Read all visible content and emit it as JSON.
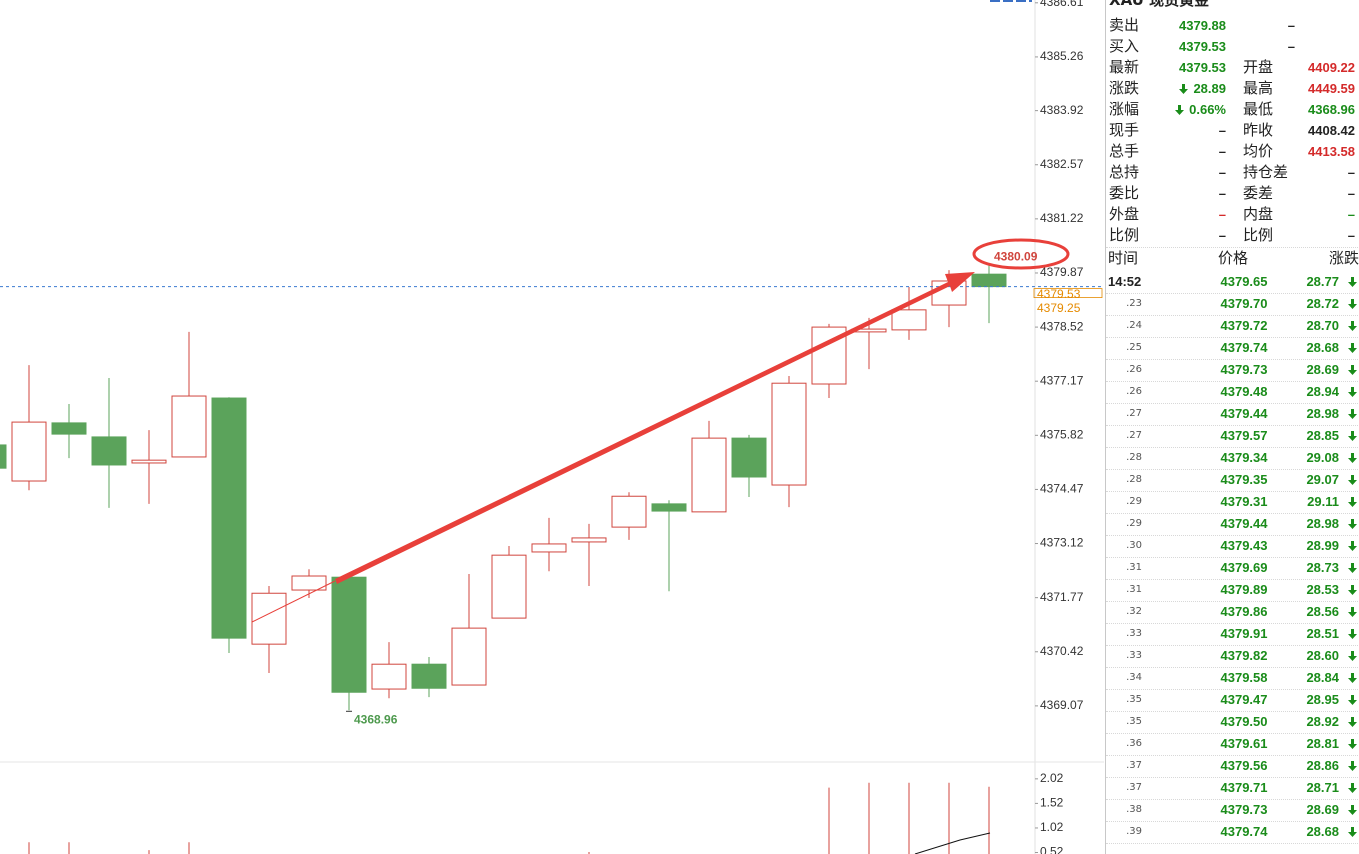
{
  "chart_data": [
    {
      "type": "candlestick",
      "open": [
        4375.58,
        4374.68,
        4376.13,
        4375.78,
        4375.13,
        4375.28,
        4376.75,
        4370.61,
        4371.96,
        4372.28,
        4369.49,
        4370.11,
        4369.59,
        4371.26,
        4372.91,
        4373.16,
        4373.53,
        4374.11,
        4373.91,
        4375.75,
        4374.58,
        4377.1,
        4378.4,
        4378.45,
        4379.07,
        4379.84
      ],
      "high": [
        4375.7,
        4377.57,
        4376.6,
        4377.25,
        4375.95,
        4378.4,
        4376.77,
        4372.06,
        4372.48,
        4372.31,
        4370.66,
        4370.29,
        4372.36,
        4373.06,
        4373.76,
        4373.61,
        4374.4,
        4374.2,
        4376.18,
        4375.83,
        4377.3,
        4378.6,
        4378.75,
        4379.52,
        4379.94,
        4380.09
      ],
      "low": [
        4374.95,
        4374.45,
        4375.25,
        4374.01,
        4374.11,
        4375.28,
        4370.39,
        4369.89,
        4371.76,
        4368.96,
        4369.26,
        4369.29,
        4369.59,
        4371.26,
        4372.43,
        4372.06,
        4373.21,
        4371.93,
        4373.91,
        4374.28,
        4374.03,
        4376.75,
        4377.47,
        4378.2,
        4378.52,
        4378.62
      ],
      "close": [
        4375.0,
        4376.15,
        4375.85,
        4375.08,
        4375.2,
        4376.8,
        4370.76,
        4371.88,
        4372.31,
        4369.41,
        4370.11,
        4369.51,
        4371.01,
        4372.83,
        4373.11,
        4373.26,
        4374.3,
        4373.93,
        4375.75,
        4374.78,
        4377.12,
        4378.52,
        4378.47,
        4378.95,
        4379.67,
        4379.53
      ],
      "up_color": "#d0453d",
      "down_color": "#5ba35b",
      "ylim": [
        4367.67,
        4386.68
      ],
      "yticks": [
        4386.61,
        4385.26,
        4383.92,
        4382.57,
        4381.22,
        4379.87,
        4378.52,
        4377.17,
        4375.82,
        4374.47,
        4373.12,
        4371.77,
        4370.42,
        4369.07
      ],
      "price_lines": [
        4379.53,
        4379.25
      ]
    },
    {
      "type": "bar",
      "values": [
        null,
        0.73,
        0.73,
        null,
        0.57,
        0.73,
        null,
        null,
        null,
        null,
        null,
        null,
        null,
        null,
        null,
        0.53,
        null,
        null,
        null,
        null,
        null,
        1.84,
        1.94,
        1.94,
        1.94,
        1.86
      ],
      "color": "#d0453d",
      "ylim": [
        0.49,
        2.2
      ],
      "yticks": [
        2.02,
        1.52,
        1.02,
        0.52
      ]
    }
  ],
  "quote_panel": {
    "title": "XAU 现货黄金",
    "rows": [
      [
        "卖出",
        "4379.88",
        "–"
      ],
      [
        "买入",
        "4379.53",
        "–"
      ],
      [
        "最新",
        "4379.53",
        "开盘",
        "4409.22"
      ],
      [
        "涨跌",
        "28.89",
        "最高",
        "4449.59"
      ],
      [
        "涨幅",
        "0.66%",
        "最低",
        "4368.96"
      ],
      [
        "现手",
        "–",
        "昨收",
        "4408.42"
      ],
      [
        "总手",
        "–",
        "均价",
        "4413.58"
      ],
      [
        "总持",
        "–",
        "持仓差",
        "–"
      ],
      [
        "委比",
        "–",
        "委差",
        "–"
      ],
      [
        "外盘",
        "–",
        "内盘",
        "–"
      ],
      [
        "比例",
        "–",
        "比例",
        "–"
      ]
    ]
  },
  "trades": {
    "header": [
      "时间",
      "价格",
      "涨跌"
    ],
    "rows": [
      [
        "14:52",
        "4379.65",
        "28.77"
      ],
      [
        ".23",
        "4379.70",
        "28.72"
      ],
      [
        ".24",
        "4379.72",
        "28.70"
      ],
      [
        ".25",
        "4379.74",
        "28.68"
      ],
      [
        ".26",
        "4379.73",
        "28.69"
      ],
      [
        ".26",
        "4379.48",
        "28.94"
      ],
      [
        ".27",
        "4379.44",
        "28.98"
      ],
      [
        ".27",
        "4379.57",
        "28.85"
      ],
      [
        ".28",
        "4379.34",
        "29.08"
      ],
      [
        ".28",
        "4379.35",
        "29.07"
      ],
      [
        ".29",
        "4379.31",
        "29.11"
      ],
      [
        ".29",
        "4379.44",
        "28.98"
      ],
      [
        ".30",
        "4379.43",
        "28.99"
      ],
      [
        ".31",
        "4379.69",
        "28.73"
      ],
      [
        ".31",
        "4379.89",
        "28.53"
      ],
      [
        ".32",
        "4379.86",
        "28.56"
      ],
      [
        ".33",
        "4379.91",
        "28.51"
      ],
      [
        ".33",
        "4379.82",
        "28.60"
      ],
      [
        ".34",
        "4379.58",
        "28.84"
      ],
      [
        ".35",
        "4379.47",
        "28.95"
      ],
      [
        ".35",
        "4379.50",
        "28.92"
      ],
      [
        ".36",
        "4379.61",
        "28.81"
      ],
      [
        ".37",
        "4379.56",
        "28.86"
      ],
      [
        ".37",
        "4379.71",
        "28.71"
      ],
      [
        ".38",
        "4379.73",
        "28.69"
      ],
      [
        ".39",
        "4379.74",
        "28.68"
      ]
    ]
  }
}
